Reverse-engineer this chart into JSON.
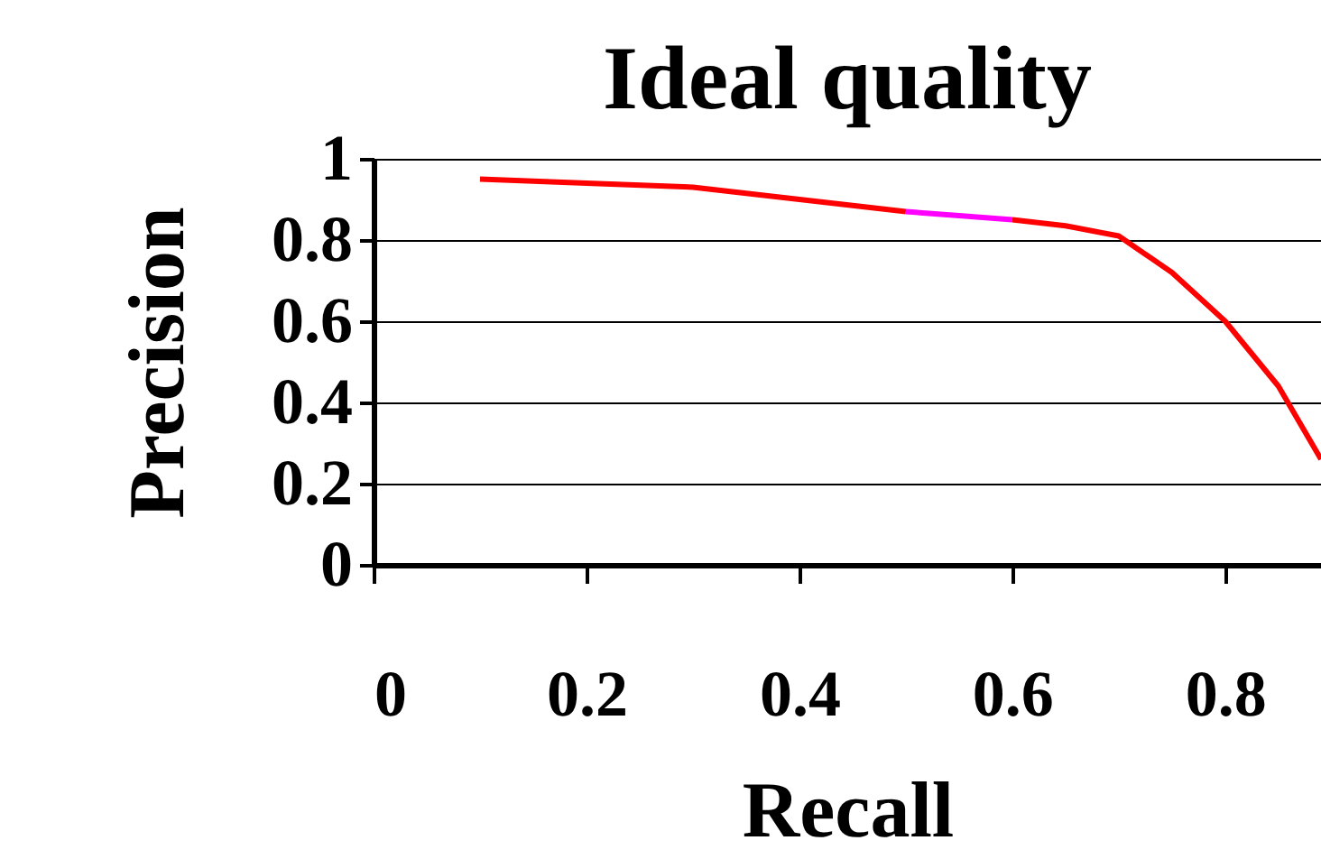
{
  "chart_data": {
    "type": "line",
    "title": "Ideal quality",
    "xlabel": "Recall",
    "ylabel": "Precision",
    "series": [
      {
        "color": "#ff0000",
        "x": [
          0.1,
          0.2,
          0.3,
          0.4,
          0.5
        ],
        "values": [
          0.95,
          0.94,
          0.93,
          0.9,
          0.87
        ]
      },
      {
        "color": "#ff00ff",
        "x": [
          0.5,
          0.55,
          0.6
        ],
        "values": [
          0.87,
          0.86,
          0.85
        ]
      },
      {
        "color": "#ff0000",
        "x": [
          0.6,
          0.65,
          0.7,
          0.75,
          0.8,
          0.85,
          0.89
        ],
        "values": [
          0.85,
          0.835,
          0.81,
          0.72,
          0.6,
          0.44,
          0.26
        ]
      }
    ],
    "xlim": [
      0,
      0.89
    ],
    "xticks": [
      0,
      0.2,
      0.4,
      0.6,
      0.8
    ],
    "ylim": [
      0,
      1
    ],
    "yticks": [
      0,
      0.2,
      0.4,
      0.6,
      0.8,
      1
    ],
    "grid": "y",
    "marker": "none",
    "line_style": "solid"
  }
}
